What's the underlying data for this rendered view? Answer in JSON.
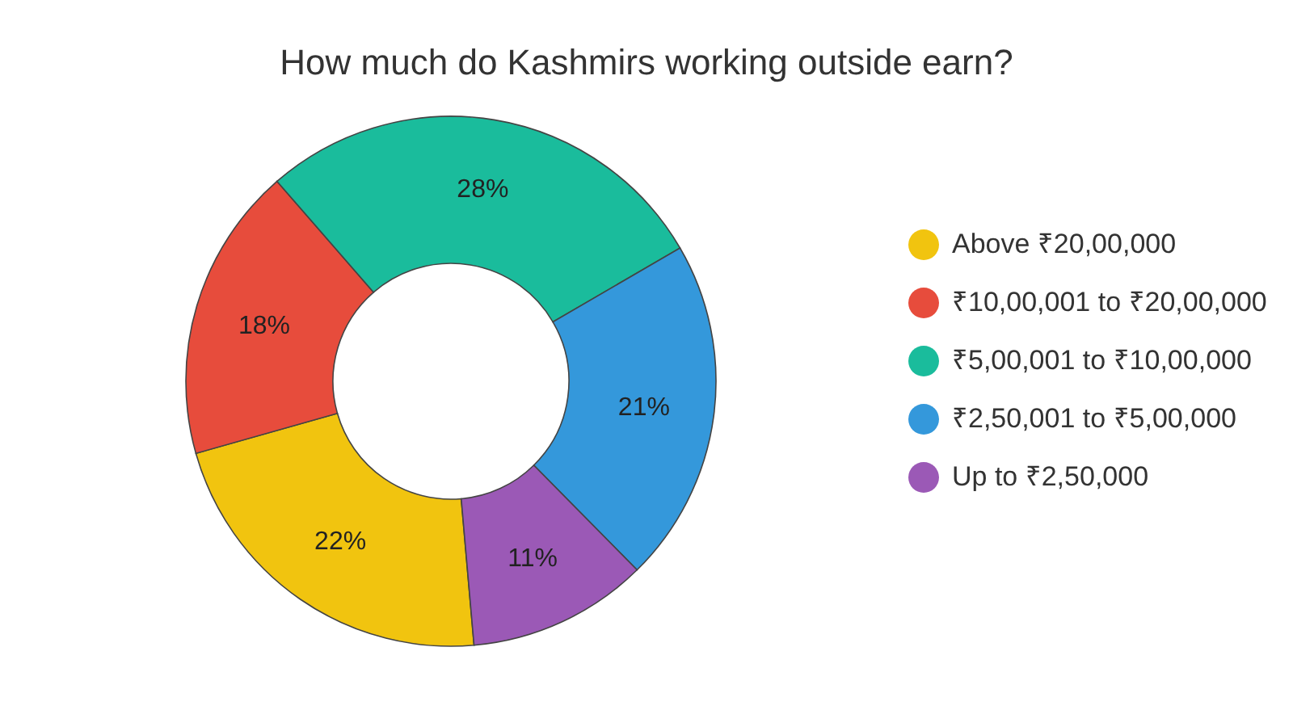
{
  "chart_data": {
    "type": "donut",
    "title": "How much do Kashmirs working outside earn?",
    "categories": [
      "Above ₹20,00,000",
      "₹10,00,001 to ₹20,00,000",
      "₹5,00,001 to ₹10,00,000",
      "₹2,50,001 to ₹5,00,000",
      "Up to ₹2,50,000"
    ],
    "values": [
      22,
      18,
      28,
      21,
      11
    ],
    "colors": [
      "#f1c40f",
      "#e74c3c",
      "#1abc9c",
      "#3498db",
      "#9b59b6"
    ],
    "value_labels": [
      "22%",
      "18%",
      "28%",
      "21%",
      "11%"
    ],
    "legend": "right"
  }
}
